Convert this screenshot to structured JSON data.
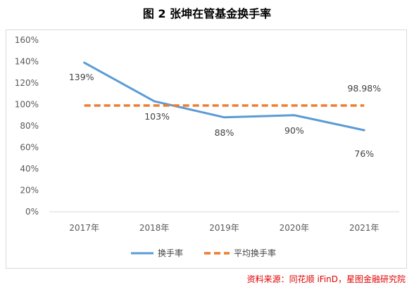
{
  "title": "图 2  张坤在管基金换手率",
  "source": "资料来源：同花顺 iFinD，星图金融研究院",
  "chart_data": {
    "type": "line",
    "categories": [
      "2017年",
      "2018年",
      "2019年",
      "2020年",
      "2021年"
    ],
    "series": [
      {
        "name": "换手率",
        "values": [
          139,
          103,
          88,
          90,
          76
        ],
        "labels": [
          "139%",
          "103%",
          "88%",
          "90%",
          "76%"
        ],
        "color": "#5b9bd5",
        "style": "solid"
      },
      {
        "name": "平均换手率",
        "values": [
          98.98,
          98.98,
          98.98,
          98.98,
          98.98
        ],
        "labels": [
          "",
          "",
          "",
          "",
          "98.98%"
        ],
        "color": "#ed7d31",
        "style": "dashed"
      }
    ],
    "ylim": [
      0,
      160
    ],
    "yticks": [
      0,
      20,
      40,
      60,
      80,
      100,
      120,
      140,
      160
    ],
    "ytick_labels": [
      "0%",
      "20%",
      "40%",
      "60%",
      "80%",
      "100%",
      "120%",
      "140%",
      "160%"
    ],
    "grid": false,
    "legend_position": "bottom"
  }
}
